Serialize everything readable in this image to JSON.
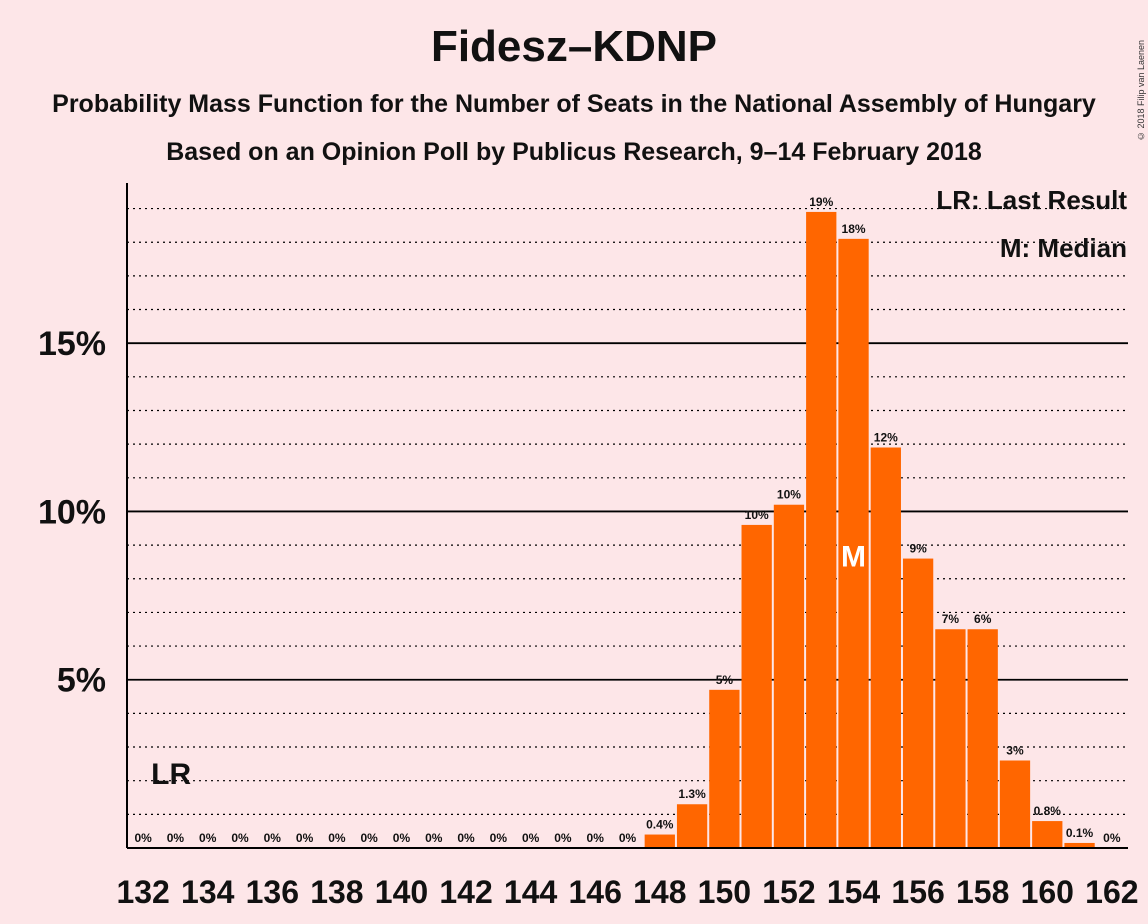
{
  "title": "Fidesz–KDNP",
  "subtitle": "Probability Mass Function for the Number of Seats in the National Assembly of Hungary",
  "subtitle2": "Based on an Opinion Poll by Publicus Research, 9–14 February 2018",
  "copyright": "© 2018 Filip van Laenen",
  "colors": {
    "background": "#fde6e8",
    "bar": "#ff6600",
    "median_mark": "#ffffff"
  },
  "chart_data": {
    "type": "bar",
    "x": [
      132,
      133,
      134,
      135,
      136,
      137,
      138,
      139,
      140,
      141,
      142,
      143,
      144,
      145,
      146,
      147,
      148,
      149,
      150,
      151,
      152,
      153,
      154,
      155,
      156,
      157,
      158,
      159,
      160,
      161,
      162
    ],
    "values": [
      0,
      0,
      0,
      0,
      0,
      0,
      0,
      0,
      0,
      0,
      0,
      0,
      0,
      0,
      0,
      0,
      0.4,
      1.3,
      4.7,
      9.6,
      10.2,
      18.9,
      18.1,
      11.9,
      8.6,
      6.5,
      6.5,
      2.6,
      0.8,
      0.15,
      0
    ],
    "value_labels": [
      "0%",
      "0%",
      "0%",
      "0%",
      "0%",
      "0%",
      "0%",
      "0%",
      "0%",
      "0%",
      "0%",
      "0%",
      "0%",
      "0%",
      "0%",
      "0%",
      "0.4%",
      "1.3%",
      "5%",
      "10%",
      "10%",
      "19%",
      "18%",
      "12%",
      "9%",
      "7%",
      "6%",
      "3%",
      "0.8%",
      "0.1%",
      "0%"
    ],
    "x_tick_labels": [
      "132",
      "134",
      "136",
      "138",
      "140",
      "142",
      "144",
      "146",
      "148",
      "150",
      "152",
      "154",
      "156",
      "158",
      "160",
      "162"
    ],
    "y_tick_labels": [
      "5%",
      "10%",
      "15%"
    ],
    "y_ticks": [
      5,
      10,
      15
    ],
    "ylim": [
      0,
      19.7
    ],
    "minor_grid_step": 1,
    "last_result_x": 132,
    "last_result_label": "LR",
    "median_x": 154,
    "median_label": "M",
    "legend": [
      "LR: Last Result",
      "M: Median"
    ],
    "legend_position": "top-right"
  }
}
